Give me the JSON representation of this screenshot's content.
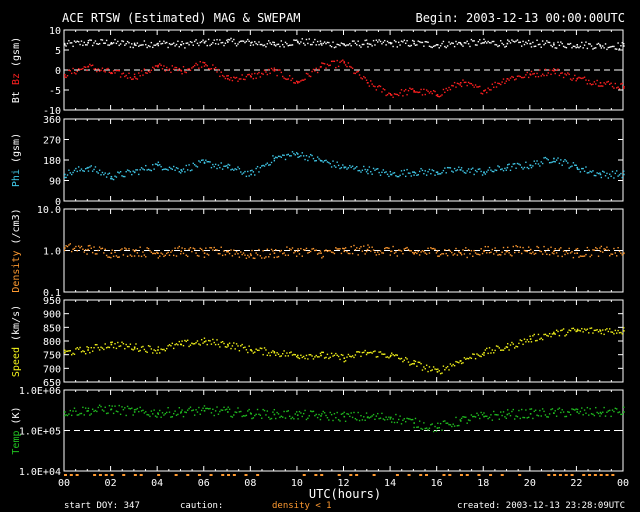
{
  "header": {
    "title": "ACE RTSW (Estimated) MAG & SWEPAM",
    "begin": "Begin: 2003-12-13 00:00:00UTC"
  },
  "footer": {
    "start_doy": "start DOY: 347",
    "caution": "caution:",
    "density_note": "density < 1",
    "created": "created: 2003-12-13 23:28:09UTC"
  },
  "colors": {
    "bt": "#ffffff",
    "bz": "#ff2020",
    "phi": "#40c8e8",
    "density": "#ff9a30",
    "speed": "#f2f21a",
    "temp": "#20c020",
    "frame": "#ffffff",
    "caution_marks": "#ff9a30"
  },
  "chart_data": {
    "type": "scatter",
    "x_axis": {
      "label": "UTC(hours)",
      "range": [
        0,
        24
      ],
      "ticks": [
        "00",
        "02",
        "04",
        "06",
        "08",
        "10",
        "12",
        "14",
        "16",
        "18",
        "20",
        "22",
        "00"
      ]
    },
    "panels": [
      {
        "name": "mag",
        "ylabels": [
          {
            "text": "Bt",
            "color": "#ffffff"
          },
          {
            "text": " Bz",
            "color": "#ff2020"
          },
          {
            "text": " (gsm)",
            "color": "#ffffff"
          }
        ],
        "ylim": [
          -10,
          10
        ],
        "ticks": [
          "10",
          "5",
          "0",
          "-5",
          "-10"
        ],
        "ref_line": 0,
        "series": [
          {
            "name": "Bt",
            "color": "#ffffff",
            "x": [
              0,
              1,
              2,
              3,
              4,
              5,
              6,
              7,
              8,
              9,
              10,
              11,
              12,
              13,
              14,
              15,
              16,
              17,
              18,
              19,
              20,
              21,
              22,
              23,
              24
            ],
            "values": [
              6.5,
              7,
              7,
              6.5,
              6.8,
              6.5,
              7,
              7.2,
              7,
              6.5,
              7.3,
              6.8,
              6.5,
              6.8,
              6.8,
              6.8,
              6.5,
              6.8,
              7,
              6.8,
              6.8,
              6.5,
              6.5,
              6.2,
              6.2
            ]
          },
          {
            "name": "Bz",
            "color": "#ff2020",
            "x": [
              0,
              1,
              2,
              3,
              4,
              5,
              6,
              7,
              8,
              9,
              10,
              11,
              12,
              13,
              14,
              15,
              16,
              17,
              18,
              19,
              20,
              21,
              22,
              23,
              24
            ],
            "values": [
              -1,
              1,
              -0.5,
              -1.5,
              1,
              0,
              2,
              -2,
              -1.5,
              0,
              -3,
              1,
              2,
              -3,
              -6,
              -5,
              -6,
              -3,
              -5,
              -2,
              -1,
              0,
              -2,
              -3,
              -4
            ]
          }
        ]
      },
      {
        "name": "phi",
        "ylabels": [
          {
            "text": "Phi",
            "color": "#40c8e8"
          },
          {
            "text": " (gsm)",
            "color": "#ffffff"
          }
        ],
        "ylim": [
          0,
          360
        ],
        "ticks": [
          "360",
          "270",
          "180",
          "90",
          "0"
        ],
        "series": [
          {
            "name": "Phi",
            "color": "#40c8e8",
            "x": [
              0,
              1,
              2,
              3,
              4,
              5,
              6,
              7,
              8,
              9,
              10,
              11,
              12,
              13,
              14,
              15,
              16,
              17,
              18,
              19,
              20,
              21,
              22,
              23,
              24
            ],
            "values": [
              120,
              150,
              110,
              130,
              160,
              140,
              170,
              150,
              120,
              190,
              210,
              180,
              150,
              140,
              120,
              130,
              130,
              140,
              130,
              150,
              160,
              190,
              150,
              120,
              120
            ]
          }
        ]
      },
      {
        "name": "density",
        "ylabels": [
          {
            "text": "Density",
            "color": "#ff9a30"
          },
          {
            "text": " (/cm3)",
            "color": "#ffffff"
          }
        ],
        "ylim": [
          0.1,
          10
        ],
        "scale": "log",
        "ticks": [
          "10.0",
          "1.0",
          "0.1"
        ],
        "ref_line": 1,
        "series": [
          {
            "name": "Density",
            "color": "#ff9a30",
            "x": [
              0,
              1,
              2,
              3,
              4,
              5,
              6,
              7,
              8,
              9,
              10,
              11,
              12,
              13,
              14,
              15,
              16,
              17,
              18,
              19,
              20,
              21,
              22,
              23,
              24
            ],
            "values": [
              1.2,
              1.1,
              0.9,
              1,
              0.9,
              1,
              0.9,
              1,
              0.8,
              0.9,
              1,
              0.9,
              1,
              1.1,
              1,
              0.9,
              1,
              0.9,
              1,
              1,
              1.1,
              1,
              0.9,
              1,
              0.9
            ]
          }
        ]
      },
      {
        "name": "speed",
        "ylabels": [
          {
            "text": "Speed",
            "color": "#f2f21a"
          },
          {
            "text": " (km/s)",
            "color": "#ffffff"
          }
        ],
        "ylim": [
          650,
          950
        ],
        "ticks": [
          "950",
          "900",
          "850",
          "800",
          "750",
          "700",
          "650"
        ],
        "series": [
          {
            "name": "Speed",
            "color": "#f2f21a",
            "x": [
              0,
              1,
              2,
              3,
              4,
              5,
              6,
              7,
              8,
              9,
              10,
              11,
              12,
              13,
              14,
              15,
              16,
              17,
              18,
              19,
              20,
              21,
              22,
              23,
              24
            ],
            "values": [
              760,
              770,
              790,
              780,
              770,
              790,
              800,
              790,
              770,
              760,
              750,
              750,
              740,
              760,
              750,
              720,
              690,
              730,
              760,
              780,
              810,
              830,
              840,
              840,
              840
            ]
          }
        ]
      },
      {
        "name": "temp",
        "ylabels": [
          {
            "text": "Temp",
            "color": "#20c020"
          },
          {
            "text": " (K)",
            "color": "#ffffff"
          }
        ],
        "ylim": [
          10000,
          1000000
        ],
        "scale": "log",
        "ticks": [
          "1.0E+06",
          "1.0E+05",
          "1.0E+04"
        ],
        "ref_line": 100000,
        "series": [
          {
            "name": "Temp",
            "color": "#20c020",
            "x": [
              0,
              1,
              2,
              3,
              4,
              5,
              6,
              7,
              8,
              9,
              10,
              11,
              12,
              13,
              14,
              15,
              16,
              17,
              18,
              19,
              20,
              21,
              22,
              23,
              24
            ],
            "values": [
              300000,
              320000,
              350000,
              300000,
              280000,
              300000,
              320000,
              300000,
              270000,
              260000,
              250000,
              240000,
              230000,
              220000,
              220000,
              160000,
              120000,
              180000,
              230000,
              260000,
              270000,
              280000,
              300000,
              290000,
              300000
            ]
          }
        ]
      }
    ]
  }
}
